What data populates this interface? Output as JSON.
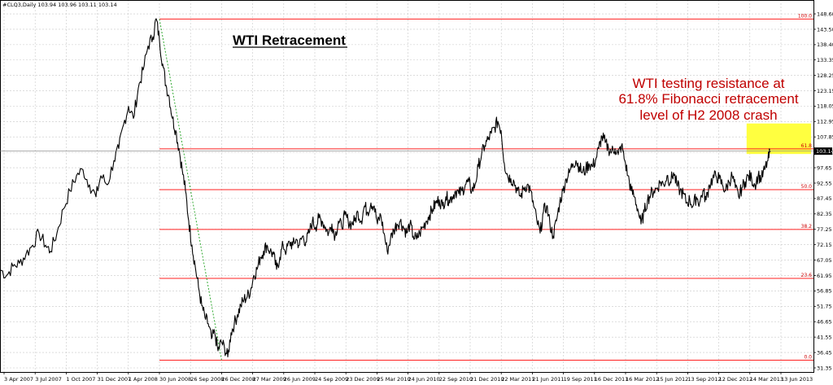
{
  "header": {
    "symbol_info": "#CLQ3,Daily  103.94 103.96 103.11 103.14"
  },
  "chart_data": {
    "type": "line",
    "title": "WTI Retracement",
    "annotation": [
      "WTI testing resistance at",
      "61.8% Fibonacci retracement",
      "level of H2 2008 crash"
    ],
    "current_price": 103.14,
    "current_price_label": "103.14",
    "ylim": [
      30,
      150.5
    ],
    "y_ticks": [
      148.6,
      143.5,
      138.4,
      133.35,
      128.25,
      123.15,
      118.05,
      112.95,
      107.85,
      102.75,
      97.65,
      92.55,
      87.45,
      82.35,
      77.25,
      72.15,
      67.05,
      61.95,
      56.85,
      51.75,
      46.65,
      41.55,
      36.45,
      31.35
    ],
    "y_tick_labels": [
      "148.60",
      "143.50",
      "138.40",
      "133.35",
      "128.25",
      "123.15",
      "118.05",
      "112.95",
      "107.85",
      "102.75",
      "97.65",
      "92.55",
      "87.45",
      "82.35",
      "77.25",
      "72.15",
      "67.05",
      "61.95",
      "56.85",
      "51.75",
      "46.65",
      "41.55",
      "36.45",
      "31.35"
    ],
    "x_labels": [
      "3 Apr 2007",
      "3 Jul 2007",
      "1 Oct 2007",
      "31 Dec 2007",
      "1 Apr 2008",
      "30 Jun 2008",
      "26 Sep 2008",
      "26 Dec 2008",
      "27 Mar 2009",
      "26 Jun 2009",
      "24 Sep 2009",
      "23 Dec 2009",
      "25 Mar 2010",
      "24 Jun 2010",
      "22 Sep 2010",
      "21 Dec 2010",
      "22 Mar 2011",
      "21 Jun 2011",
      "19 Sep 2011",
      "16 Dec 2011",
      "16 Mar 2012",
      "15 Jun 2012",
      "13 Sep 2012",
      "12 Dec 2012",
      "14 Mar 2013",
      "13 Jun 2013"
    ],
    "fib_levels": [
      {
        "label": "100.0",
        "value": 146.9
      },
      {
        "label": "61.8",
        "value": 103.9
      },
      {
        "label": "50.0",
        "value": 90.4
      },
      {
        "label": "38.2",
        "value": 77.2
      },
      {
        "label": "23.6",
        "value": 61.0
      },
      {
        "label": "0.0",
        "value": 33.9
      }
    ],
    "trendline": {
      "from": {
        "x": "30 Jun 2008",
        "y": 146.9
      },
      "to": {
        "x": "26 Dec 2008",
        "y": 33.9
      }
    },
    "resistance_zone": {
      "from_x": "14 Mar 2013",
      "to_x": "13 Jun 2013",
      "y_low": 102.2,
      "y_high": 112.3
    },
    "series": [
      {
        "points": [
          [
            0,
            64
          ],
          [
            8,
            62
          ],
          [
            16,
            65
          ],
          [
            24,
            66
          ],
          [
            32,
            69
          ],
          [
            40,
            72
          ],
          [
            48,
            76
          ],
          [
            56,
            72
          ],
          [
            62,
            70
          ],
          [
            70,
            76
          ],
          [
            78,
            84
          ],
          [
            86,
            90
          ],
          [
            94,
            95
          ],
          [
            102,
            97
          ],
          [
            110,
            92
          ],
          [
            118,
            88
          ],
          [
            124,
            95
          ],
          [
            132,
            92
          ],
          [
            140,
            100
          ],
          [
            146,
            104
          ],
          [
            152,
            112
          ],
          [
            158,
            118
          ],
          [
            164,
            114
          ],
          [
            170,
            124
          ],
          [
            176,
            130
          ],
          [
            182,
            138
          ],
          [
            188,
            141
          ],
          [
            192,
            147
          ],
          [
            196,
            140
          ],
          [
            200,
            132
          ],
          [
            204,
            125
          ],
          [
            208,
            121
          ],
          [
            212,
            114
          ],
          [
            216,
            110
          ],
          [
            220,
            104
          ],
          [
            224,
            97
          ],
          [
            228,
            90
          ],
          [
            232,
            80
          ],
          [
            236,
            72
          ],
          [
            240,
            65
          ],
          [
            244,
            58
          ],
          [
            248,
            52
          ],
          [
            252,
            48
          ],
          [
            256,
            46
          ],
          [
            260,
            41
          ],
          [
            264,
            43
          ],
          [
            268,
            37
          ],
          [
            272,
            40
          ],
          [
            276,
            38
          ],
          [
            280,
            35
          ],
          [
            284,
            43
          ],
          [
            288,
            46
          ],
          [
            292,
            49
          ],
          [
            296,
            52
          ],
          [
            300,
            54
          ],
          [
            304,
            55
          ],
          [
            308,
            57
          ],
          [
            312,
            62
          ],
          [
            316,
            64
          ],
          [
            320,
            68
          ],
          [
            324,
            70
          ],
          [
            328,
            72
          ],
          [
            332,
            70
          ],
          [
            336,
            69
          ],
          [
            340,
            64
          ],
          [
            344,
            68
          ],
          [
            348,
            72
          ],
          [
            352,
            70
          ],
          [
            356,
            73
          ],
          [
            360,
            72
          ],
          [
            364,
            74
          ],
          [
            368,
            72
          ],
          [
            372,
            75
          ],
          [
            376,
            73
          ],
          [
            380,
            76
          ],
          [
            384,
            80
          ],
          [
            388,
            78
          ],
          [
            392,
            81
          ],
          [
            396,
            80
          ],
          [
            400,
            78
          ],
          [
            404,
            76
          ],
          [
            408,
            79
          ],
          [
            412,
            75
          ],
          [
            416,
            80
          ],
          [
            420,
            78
          ],
          [
            424,
            82
          ],
          [
            428,
            80
          ],
          [
            432,
            79
          ],
          [
            436,
            80
          ],
          [
            440,
            83
          ],
          [
            444,
            80
          ],
          [
            448,
            85
          ],
          [
            452,
            83
          ],
          [
            456,
            86
          ],
          [
            460,
            85
          ],
          [
            464,
            79
          ],
          [
            468,
            82
          ],
          [
            472,
            76
          ],
          [
            476,
            70
          ],
          [
            480,
            74
          ],
          [
            484,
            77
          ],
          [
            488,
            79
          ],
          [
            492,
            80
          ],
          [
            496,
            78
          ],
          [
            500,
            76
          ],
          [
            504,
            79
          ],
          [
            508,
            75
          ],
          [
            512,
            74
          ],
          [
            516,
            76
          ],
          [
            520,
            78
          ],
          [
            524,
            80
          ],
          [
            528,
            82
          ],
          [
            532,
            84
          ],
          [
            536,
            86
          ],
          [
            540,
            87
          ],
          [
            544,
            85
          ],
          [
            548,
            88
          ],
          [
            552,
            87
          ],
          [
            556,
            88
          ],
          [
            560,
            90
          ],
          [
            564,
            89
          ],
          [
            568,
            90
          ],
          [
            572,
            92
          ],
          [
            576,
            93
          ],
          [
            580,
            90
          ],
          [
            584,
            92
          ],
          [
            588,
            98
          ],
          [
            592,
            102
          ],
          [
            596,
            105
          ],
          [
            600,
            107
          ],
          [
            604,
            109
          ],
          [
            608,
            111
          ],
          [
            612,
            113
          ],
          [
            616,
            110
          ],
          [
            620,
            99
          ],
          [
            624,
            95
          ],
          [
            628,
            94
          ],
          [
            632,
            93
          ],
          [
            636,
            90
          ],
          [
            640,
            88
          ],
          [
            644,
            91
          ],
          [
            648,
            92
          ],
          [
            652,
            90
          ],
          [
            656,
            85
          ],
          [
            660,
            80
          ],
          [
            664,
            76
          ],
          [
            668,
            83
          ],
          [
            672,
            85
          ],
          [
            676,
            79
          ],
          [
            680,
            75
          ],
          [
            684,
            80
          ],
          [
            688,
            86
          ],
          [
            692,
            90
          ],
          [
            696,
            94
          ],
          [
            700,
            96
          ],
          [
            704,
            99
          ],
          [
            708,
            100
          ],
          [
            712,
            98
          ],
          [
            716,
            96
          ],
          [
            720,
            97
          ],
          [
            724,
            99
          ],
          [
            728,
            98
          ],
          [
            732,
            100
          ],
          [
            736,
            104
          ],
          [
            740,
            108
          ],
          [
            744,
            106
          ],
          [
            748,
            104
          ],
          [
            752,
            103
          ],
          [
            756,
            104
          ],
          [
            760,
            102
          ],
          [
            764,
            105
          ],
          [
            768,
            100
          ],
          [
            772,
            95
          ],
          [
            776,
            90
          ],
          [
            780,
            88
          ],
          [
            784,
            84
          ],
          [
            788,
            79
          ],
          [
            792,
            83
          ],
          [
            796,
            87
          ],
          [
            800,
            89
          ],
          [
            804,
            90
          ],
          [
            808,
            91
          ],
          [
            812,
            93
          ],
          [
            816,
            92
          ],
          [
            820,
            95
          ],
          [
            824,
            93
          ],
          [
            828,
            96
          ],
          [
            832,
            92
          ],
          [
            836,
            90
          ],
          [
            840,
            89
          ],
          [
            844,
            86
          ],
          [
            848,
            87
          ],
          [
            852,
            85
          ],
          [
            856,
            88
          ],
          [
            860,
            86
          ],
          [
            864,
            90
          ],
          [
            868,
            87
          ],
          [
            872,
            92
          ],
          [
            876,
            94
          ],
          [
            880,
            95
          ],
          [
            884,
            94
          ],
          [
            888,
            92
          ],
          [
            892,
            90
          ],
          [
            896,
            93
          ],
          [
            900,
            95
          ],
          [
            904,
            91
          ],
          [
            908,
            88
          ],
          [
            912,
            91
          ],
          [
            916,
            93
          ],
          [
            920,
            95
          ],
          [
            924,
            94
          ],
          [
            928,
            92
          ],
          [
            932,
            95
          ],
          [
            936,
            94
          ],
          [
            940,
            97
          ],
          [
            944,
            100
          ],
          [
            947,
            103.14
          ]
        ]
      }
    ],
    "colors": {
      "price": "#000000",
      "fib": "#ff2020",
      "trend": "#33aa33",
      "zone": "#ffff40",
      "grid": "#c8c8c8",
      "price_tag_bg": "#000000"
    },
    "grid": true
  }
}
